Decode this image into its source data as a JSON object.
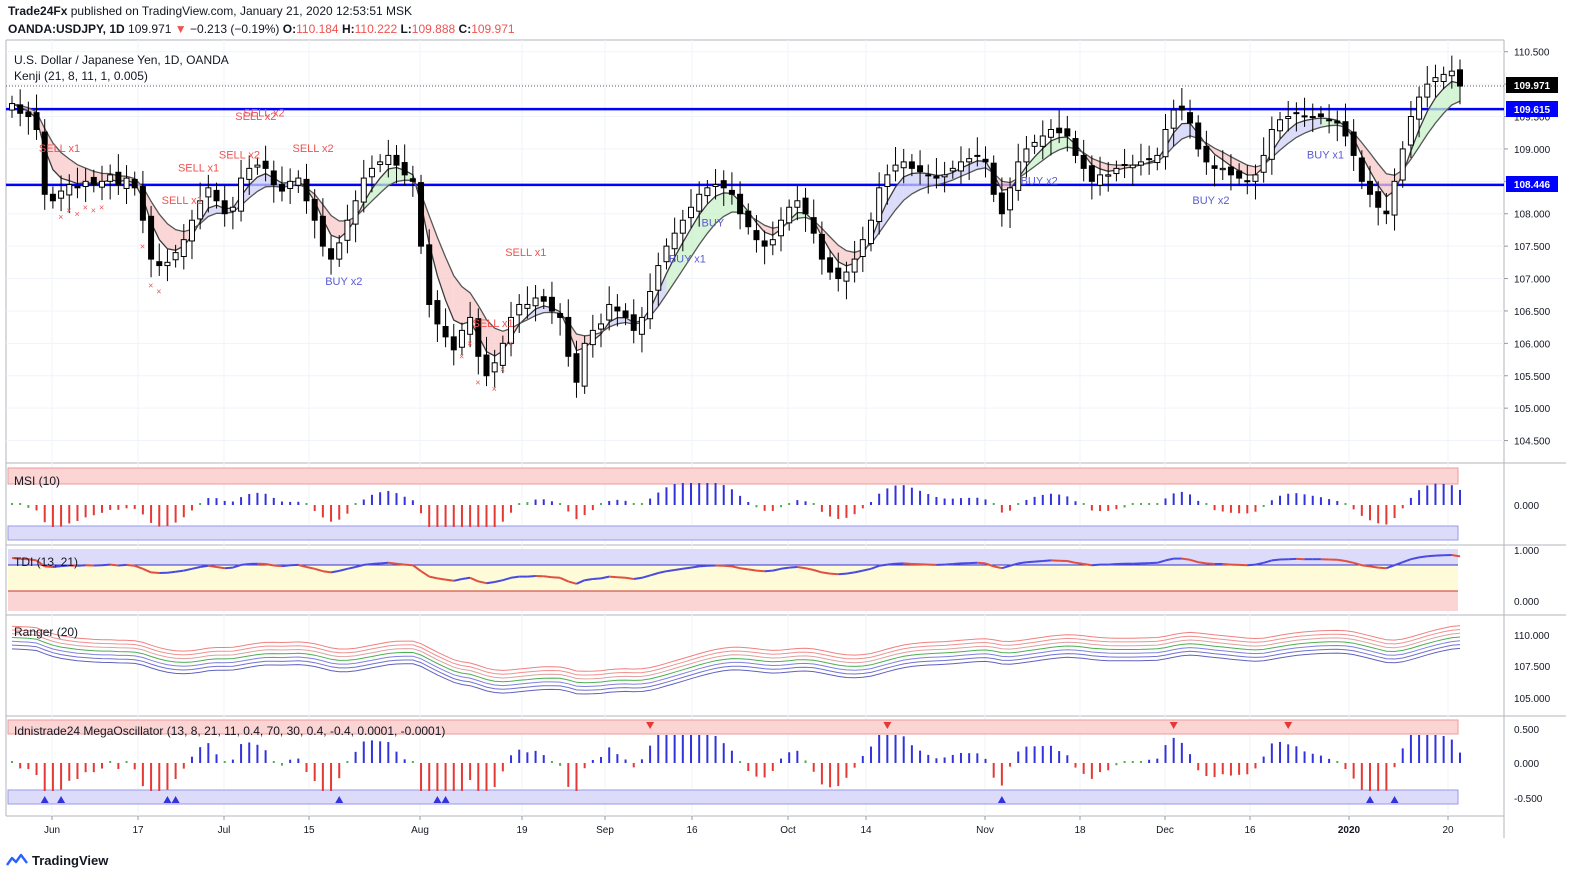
{
  "header": {
    "publisher": "Trade24Fx",
    "published_text": "published on TradingView.com, January 21, 2020 12:53:51 MSK",
    "symbol": "OANDA:USDJPY, 1D",
    "last": "109.971",
    "change": "−0.213 (−0.19%)",
    "o_label": "O:",
    "o": "110.184",
    "h_label": "H:",
    "h": "110.222",
    "l_label": "L:",
    "l": "109.888",
    "c_label": "C:",
    "c": "109.971"
  },
  "main": {
    "title": "U.S. Dollar / Japanese Yen, 1D, OANDA",
    "indicator": "Kenji (21, 8, 11, 1, 0.005)",
    "price_badge": "109.971",
    "line_upper_label": "109.615",
    "line_lower_label": "108.446"
  },
  "panes": {
    "msi": "MSI (10)",
    "tdi": "TDI (13, 21)",
    "ranger": "Ranger (20)",
    "mega": "Idnistrade24 MegaOscillator (13, 8, 21, 11, 0.4, 70, 30, 0.4, -0.4, 0.0001, -0.0001)"
  },
  "signals": {
    "sell_x1": "SELL x1",
    "sell_x2": "SELL x2",
    "sell": "SELL",
    "buy_x1": "BUY x1",
    "buy_x2": "BUY x2",
    "buy": "BUY"
  },
  "footer": {
    "brand": "TradingView"
  },
  "colors": {
    "up": "#ffffff",
    "down": "#000000",
    "hline": "#0000ff",
    "sellText": "#ef5350",
    "buyText": "#5b5bd6"
  },
  "chart_data": {
    "type": "candlestick",
    "symbol": "USDJPY",
    "interval": "1D",
    "x_ticks": [
      "Jun",
      "17",
      "Jul",
      "15",
      "Aug",
      "19",
      "Sep",
      "16",
      "Oct",
      "14",
      "Nov",
      "18",
      "Dec",
      "16",
      "2020",
      "20"
    ],
    "y_ticks": [
      "110.500",
      "110.000",
      "109.500",
      "109.000",
      "108.500",
      "108.000",
      "107.500",
      "107.000",
      "106.500",
      "106.000",
      "105.500",
      "105.000",
      "104.500"
    ],
    "ylim": [
      104.2,
      110.65
    ],
    "horizontal_lines": [
      109.615,
      108.446
    ],
    "msi_ticks": [
      "0.000"
    ],
    "tdi_ticks": [
      "1.000",
      "0.000"
    ],
    "ranger_ticks": [
      "110.000",
      "107.500",
      "105.000"
    ],
    "mega_ticks": [
      "0.500",
      "0.000",
      "-0.500"
    ],
    "close_path": [
      109.7,
      109.55,
      109.5,
      109.3,
      108.3,
      108.2,
      108.35,
      108.45,
      108.4,
      108.5,
      108.45,
      108.5,
      108.6,
      108.45,
      108.55,
      108.4,
      107.9,
      107.3,
      107.2,
      107.25,
      107.4,
      107.6,
      107.9,
      108.2,
      108.4,
      108.2,
      108.0,
      108.1,
      108.55,
      108.7,
      108.75,
      108.7,
      108.45,
      108.35,
      108.5,
      108.55,
      108.2,
      107.9,
      107.5,
      107.3,
      107.55,
      107.9,
      108.2,
      108.55,
      108.7,
      108.8,
      108.9,
      108.75,
      108.6,
      108.5,
      107.5,
      106.6,
      106.3,
      106.1,
      105.9,
      106.2,
      106.4,
      105.8,
      105.5,
      105.7,
      106.0,
      106.4,
      106.6,
      106.6,
      106.7,
      106.65,
      106.5,
      106.4,
      105.8,
      105.4,
      106.0,
      106.2,
      106.3,
      106.6,
      106.5,
      106.4,
      106.2,
      106.4,
      106.8,
      107.2,
      107.5,
      107.7,
      107.9,
      108.1,
      108.3,
      108.4,
      108.45,
      108.4,
      108.3,
      108.0,
      107.8,
      107.6,
      107.5,
      107.6,
      107.9,
      108.1,
      108.2,
      108.0,
      107.7,
      107.3,
      107.1,
      107.0,
      107.1,
      107.3,
      107.6,
      107.9,
      108.4,
      108.6,
      108.75,
      108.8,
      108.7,
      108.65,
      108.6,
      108.55,
      108.6,
      108.7,
      108.8,
      108.85,
      108.9,
      108.8,
      108.3,
      108.0,
      108.4,
      108.8,
      109.0,
      109.1,
      109.2,
      109.3,
      109.25,
      109.2,
      108.9,
      108.7,
      108.5,
      108.6,
      108.6,
      108.7,
      108.75,
      108.75,
      108.8,
      108.85,
      108.9,
      109.3,
      109.6,
      109.6,
      109.4,
      109.0,
      108.8,
      108.7,
      108.7,
      108.6,
      108.55,
      108.5,
      108.6,
      108.9,
      109.3,
      109.45,
      109.5,
      109.55,
      109.5,
      109.5,
      109.5,
      109.45,
      109.4,
      109.2,
      108.9,
      108.5,
      108.3,
      108.1,
      108.0,
      108.5,
      109.0,
      109.5,
      109.8,
      110.0,
      110.1,
      110.15,
      110.2,
      109.97
    ]
  }
}
